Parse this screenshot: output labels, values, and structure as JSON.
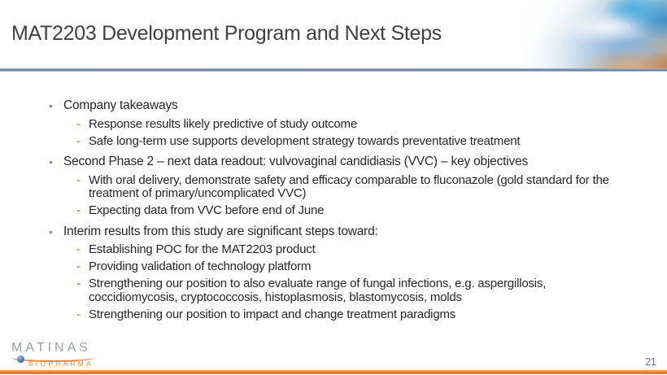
{
  "slide": {
    "title": "MAT2203 Development Program and Next Steps",
    "page_number": "21"
  },
  "content": {
    "markers": {
      "level1": "•",
      "level2": "-"
    },
    "bullets": [
      {
        "level": 1,
        "text": "Company takeaways"
      },
      {
        "level": 2,
        "text": "Response results likely predictive of study outcome"
      },
      {
        "level": 2,
        "text": "Safe long-term use supports development strategy towards preventative treatment"
      },
      {
        "level": 1,
        "text": "Second Phase 2 – next data readout: vulvovaginal candidiasis (VVC) – key objectives"
      },
      {
        "level": 2,
        "text": "With oral delivery, demonstrate safety and efficacy comparable to fluconazole (gold standard for the treatment of primary/uncomplicated VVC)"
      },
      {
        "level": 2,
        "text": "Expecting data from VVC before end of June"
      },
      {
        "level": 1,
        "text": "Interim results from this study are significant steps toward:"
      },
      {
        "level": 2,
        "text": "Establishing POC for the MAT2203 product"
      },
      {
        "level": 2,
        "text": "Providing validation of technology platform"
      },
      {
        "level": 2,
        "text": "Strengthening our position to also evaluate range of fungal infections, e.g. aspergillosis, coccidiomycosis, cryptococcosis, histoplasmosis, blastomycosis, molds"
      },
      {
        "level": 2,
        "text": "Strengthening our position to impact and change treatment paradigms"
      }
    ]
  },
  "footer": {
    "logo_name": "MATINAS",
    "logo_subtitle": "BIOPHARMA"
  },
  "colors": {
    "title_text": "#404040",
    "body_text": "#262626",
    "bullet_dot": "#7d96c4",
    "bullet_dash": "#c9a35e",
    "divider_line": "#6e85a3",
    "footer_bar": "#e8822f",
    "page_number": "#5f739b",
    "logo_name": "#98a0ab",
    "logo_subtitle": "#e8873a"
  }
}
